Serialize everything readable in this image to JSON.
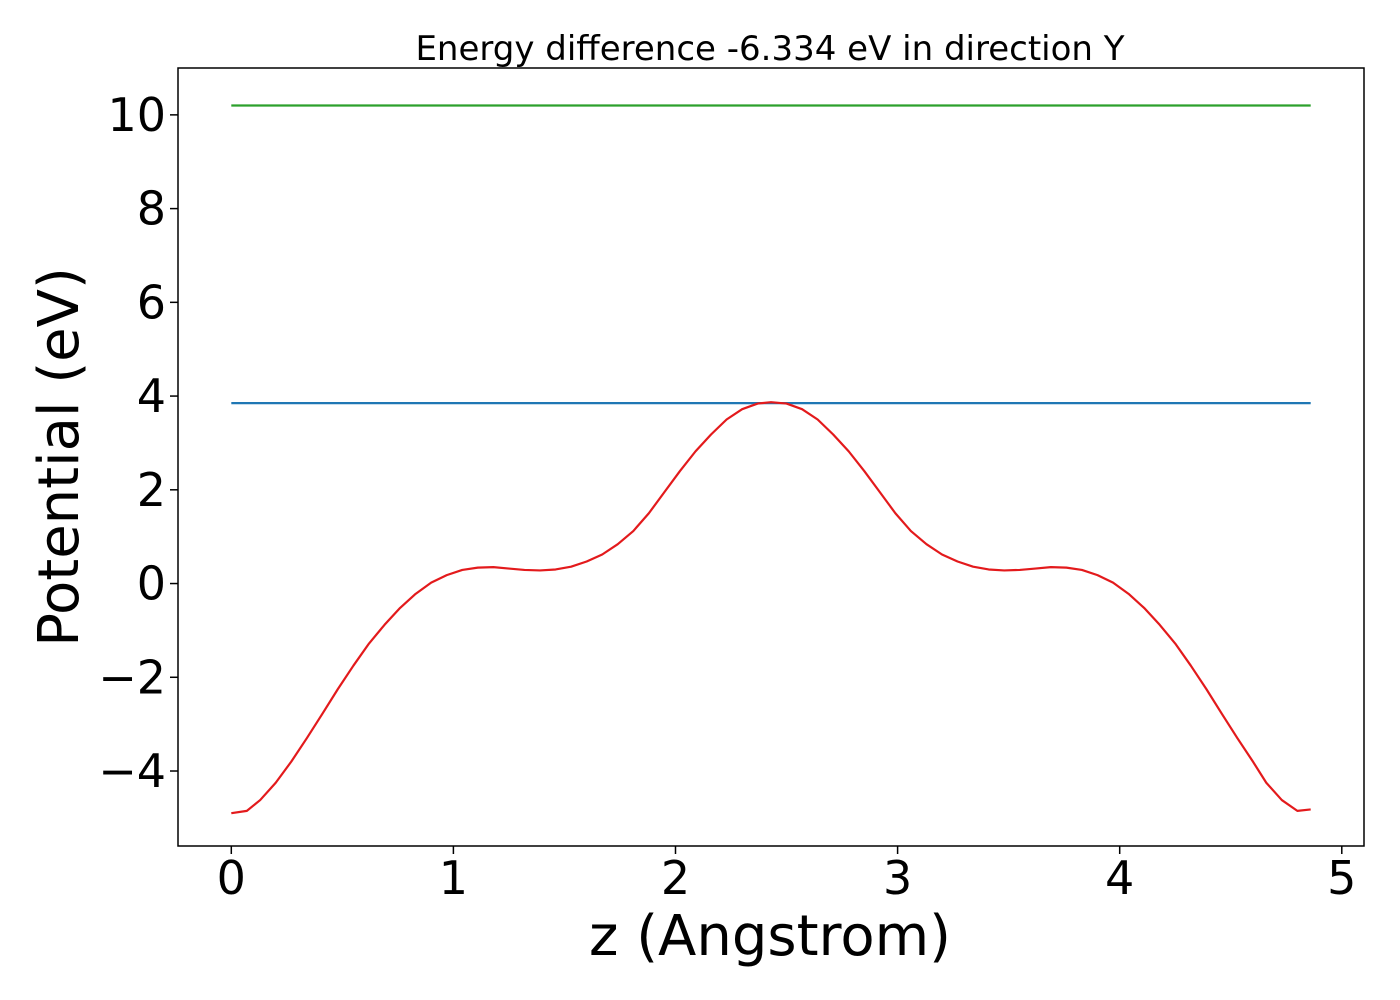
{
  "chart_data": {
    "type": "line",
    "title": "Energy difference -6.334 eV in direction Y",
    "xlabel": "z (Angstrom)",
    "ylabel": "Potential (eV)",
    "xlim": [
      -0.24,
      5.1
    ],
    "ylim": [
      -5.6,
      11.0
    ],
    "xticks": [
      0,
      1,
      2,
      3,
      4,
      5
    ],
    "xtick_labels": [
      "0",
      "1",
      "2",
      "3",
      "4",
      "5"
    ],
    "yticks": [
      -4,
      -2,
      0,
      2,
      4,
      6,
      8,
      10
    ],
    "ytick_labels": [
      "−4",
      "−2",
      "0",
      "2",
      "4",
      "6",
      "8",
      "10"
    ],
    "grid": false,
    "series": [
      {
        "color": "#2ca02c",
        "x": [
          0,
          4.86
        ],
        "y": [
          10.2,
          10.2
        ]
      },
      {
        "color": "#1f77b4",
        "x": [
          0,
          4.86
        ],
        "y": [
          3.85,
          3.85
        ]
      },
      {
        "color": "#e31a1c",
        "x": [
          0.0,
          0.07,
          0.13,
          0.2,
          0.27,
          0.34,
          0.41,
          0.48,
          0.55,
          0.62,
          0.69,
          0.76,
          0.83,
          0.9,
          0.97,
          1.04,
          1.11,
          1.18,
          1.25,
          1.32,
          1.39,
          1.46,
          1.53,
          1.6,
          1.67,
          1.74,
          1.81,
          1.88,
          1.95,
          2.02,
          2.09,
          2.16,
          2.23,
          2.3,
          2.37,
          2.43,
          2.5,
          2.57,
          2.64,
          2.71,
          2.78,
          2.85,
          2.92,
          2.99,
          3.06,
          3.13,
          3.2,
          3.27,
          3.34,
          3.41,
          3.48,
          3.55,
          3.62,
          3.69,
          3.76,
          3.83,
          3.9,
          3.97,
          4.04,
          4.11,
          4.18,
          4.25,
          4.32,
          4.39,
          4.46,
          4.53,
          4.6,
          4.66,
          4.73,
          4.8,
          4.86
        ],
        "y": [
          -4.9,
          -4.85,
          -4.62,
          -4.25,
          -3.8,
          -3.3,
          -2.78,
          -2.25,
          -1.75,
          -1.28,
          -0.88,
          -0.52,
          -0.22,
          0.02,
          0.18,
          0.29,
          0.34,
          0.35,
          0.32,
          0.29,
          0.28,
          0.3,
          0.36,
          0.47,
          0.62,
          0.84,
          1.12,
          1.5,
          1.95,
          2.4,
          2.82,
          3.18,
          3.5,
          3.72,
          3.84,
          3.87,
          3.84,
          3.72,
          3.5,
          3.18,
          2.82,
          2.4,
          1.95,
          1.5,
          1.12,
          0.84,
          0.62,
          0.47,
          0.36,
          0.3,
          0.28,
          0.29,
          0.32,
          0.35,
          0.34,
          0.29,
          0.18,
          0.02,
          -0.22,
          -0.52,
          -0.88,
          -1.28,
          -1.75,
          -2.25,
          -2.78,
          -3.3,
          -3.8,
          -4.25,
          -4.62,
          -4.85,
          -4.82
        ]
      }
    ]
  }
}
